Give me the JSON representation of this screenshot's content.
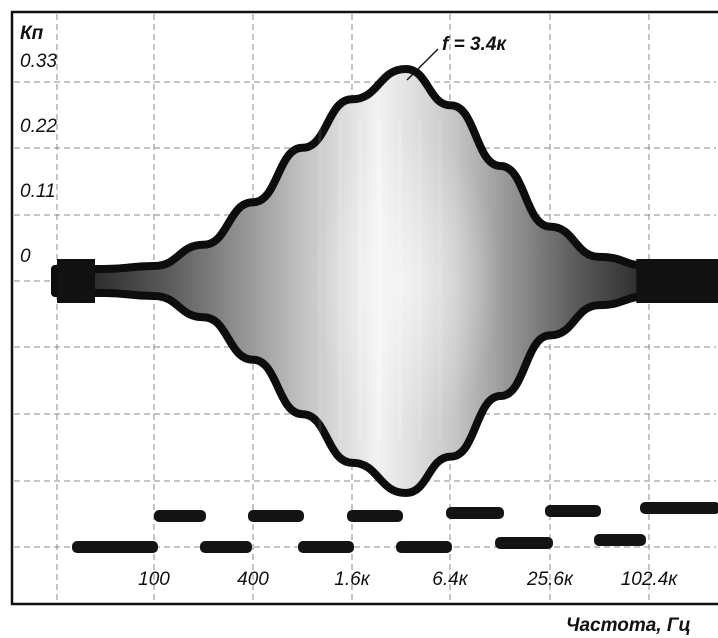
{
  "chart_data": {
    "type": "line",
    "title": "",
    "annotation": "f = 3.4к",
    "ylabel": "Кп",
    "xlabel": "Частота, Гц",
    "y_tick_labels": [
      "0.33",
      "0.22",
      "0.11",
      "0"
    ],
    "y_tick_values": [
      0.33,
      0.22,
      0.11,
      0
    ],
    "x_tick_labels": [
      "100",
      "400",
      "1.6к",
      "6.4к",
      "25.6к",
      "102.4к"
    ],
    "x_scale": "log",
    "grid": true,
    "series": [
      {
        "x": [
          25,
          50,
          100,
          200,
          400,
          800,
          1600,
          3400,
          6400,
          12800,
          25600,
          51200,
          102400,
          150000
        ],
        "y": [
          0.0,
          0.0,
          0.005,
          0.04,
          0.11,
          0.2,
          0.28,
          0.33,
          0.27,
          0.17,
          0.07,
          0.02,
          0.005,
          0.0
        ]
      }
    ],
    "peak": {
      "x": 3400,
      "y": 0.33
    }
  }
}
